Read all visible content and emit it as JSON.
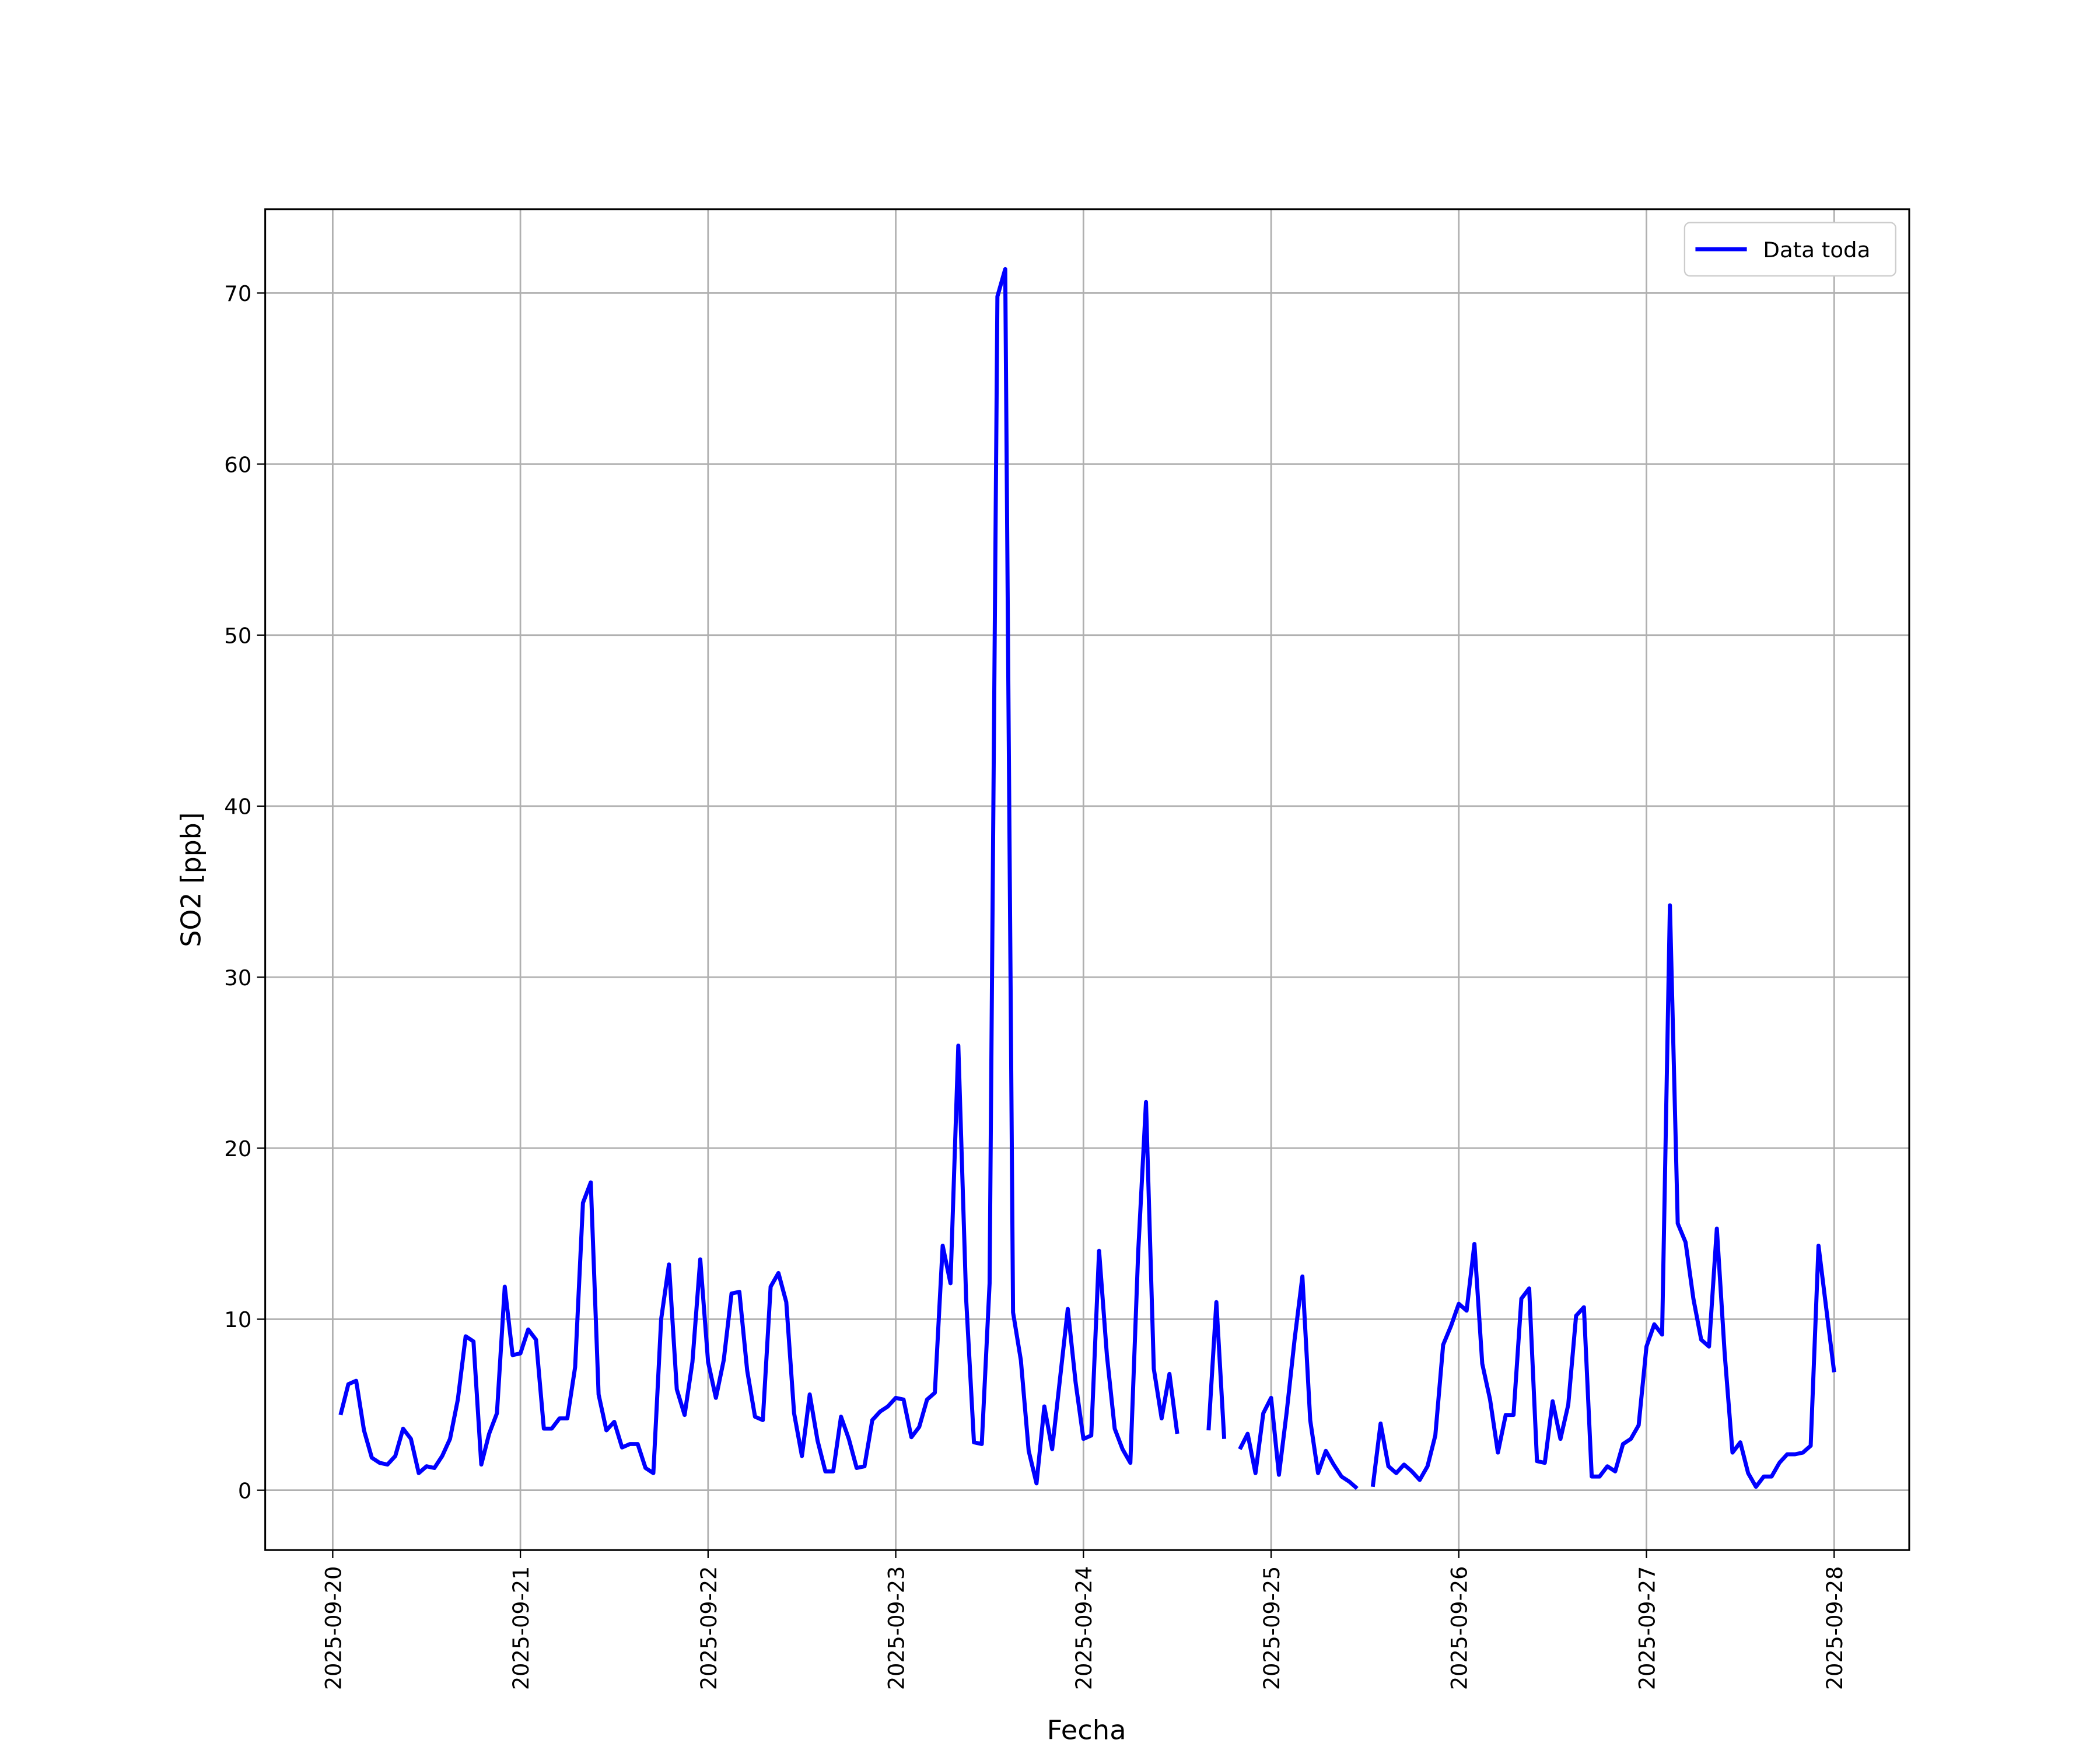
{
  "chart_data": {
    "type": "line",
    "xlabel": "Fecha",
    "ylabel": "SO2 [ppb]",
    "x": [
      "2025-09-20 01:00",
      "2025-09-20 02:00",
      "2025-09-20 03:00",
      "2025-09-20 04:00",
      "2025-09-20 05:00",
      "2025-09-20 06:00",
      "2025-09-20 07:00",
      "2025-09-20 08:00",
      "2025-09-20 09:00",
      "2025-09-20 10:00",
      "2025-09-20 11:00",
      "2025-09-20 12:00",
      "2025-09-20 13:00",
      "2025-09-20 14:00",
      "2025-09-20 15:00",
      "2025-09-20 16:00",
      "2025-09-20 17:00",
      "2025-09-20 18:00",
      "2025-09-20 19:00",
      "2025-09-20 20:00",
      "2025-09-20 21:00",
      "2025-09-20 22:00",
      "2025-09-20 23:00",
      "2025-09-21 00:00",
      "2025-09-21 01:00",
      "2025-09-21 02:00",
      "2025-09-21 03:00",
      "2025-09-21 04:00",
      "2025-09-21 05:00",
      "2025-09-21 06:00",
      "2025-09-21 07:00",
      "2025-09-21 08:00",
      "2025-09-21 09:00",
      "2025-09-21 10:00",
      "2025-09-21 11:00",
      "2025-09-21 12:00",
      "2025-09-21 13:00",
      "2025-09-21 14:00",
      "2025-09-21 15:00",
      "2025-09-21 16:00",
      "2025-09-21 17:00",
      "2025-09-21 18:00",
      "2025-09-21 19:00",
      "2025-09-21 20:00",
      "2025-09-21 21:00",
      "2025-09-21 22:00",
      "2025-09-21 23:00",
      "2025-09-22 00:00",
      "2025-09-22 01:00",
      "2025-09-22 02:00",
      "2025-09-22 03:00",
      "2025-09-22 04:00",
      "2025-09-22 05:00",
      "2025-09-22 06:00",
      "2025-09-22 07:00",
      "2025-09-22 08:00",
      "2025-09-22 09:00",
      "2025-09-22 10:00",
      "2025-09-22 11:00",
      "2025-09-22 12:00",
      "2025-09-22 13:00",
      "2025-09-22 14:00",
      "2025-09-22 15:00",
      "2025-09-22 16:00",
      "2025-09-22 17:00",
      "2025-09-22 18:00",
      "2025-09-22 19:00",
      "2025-09-22 20:00",
      "2025-09-22 21:00",
      "2025-09-22 22:00",
      "2025-09-22 23:00",
      "2025-09-23 00:00",
      "2025-09-23 01:00",
      "2025-09-23 02:00",
      "2025-09-23 03:00",
      "2025-09-23 04:00",
      "2025-09-23 05:00",
      "2025-09-23 06:00",
      "2025-09-23 07:00",
      "2025-09-23 08:00",
      "2025-09-23 09:00",
      "2025-09-23 10:00",
      "2025-09-23 11:00",
      "2025-09-23 12:00",
      "2025-09-23 13:00",
      "2025-09-23 14:00",
      "2025-09-23 15:00",
      "2025-09-23 16:00",
      "2025-09-23 17:00",
      "2025-09-23 18:00",
      "2025-09-23 19:00",
      "2025-09-23 20:00",
      "2025-09-23 21:00",
      "2025-09-23 22:00",
      "2025-09-23 23:00",
      "2025-09-24 00:00",
      "2025-09-24 01:00",
      "2025-09-24 02:00",
      "2025-09-24 03:00",
      "2025-09-24 04:00",
      "2025-09-24 05:00",
      "2025-09-24 06:00",
      "2025-09-24 07:00",
      "2025-09-24 08:00",
      "2025-09-24 09:00",
      "2025-09-24 10:00",
      "2025-09-24 11:00",
      "2025-09-24 12:00",
      "2025-09-24 13:00",
      "2025-09-24 14:00",
      "2025-09-24 15:00",
      "2025-09-24 16:00",
      "2025-09-24 17:00",
      "2025-09-24 18:00",
      "2025-09-24 19:00",
      "2025-09-24 20:00",
      "2025-09-24 21:00",
      "2025-09-24 22:00",
      "2025-09-24 23:00",
      "2025-09-25 00:00",
      "2025-09-25 01:00",
      "2025-09-25 02:00",
      "2025-09-25 03:00",
      "2025-09-25 04:00",
      "2025-09-25 05:00",
      "2025-09-25 06:00",
      "2025-09-25 07:00",
      "2025-09-25 08:00",
      "2025-09-25 09:00",
      "2025-09-25 10:00",
      "2025-09-25 11:00",
      "2025-09-25 12:00",
      "2025-09-25 13:00",
      "2025-09-25 14:00",
      "2025-09-25 15:00",
      "2025-09-25 16:00",
      "2025-09-25 17:00",
      "2025-09-25 18:00",
      "2025-09-25 19:00",
      "2025-09-25 20:00",
      "2025-09-25 21:00",
      "2025-09-25 22:00",
      "2025-09-25 23:00",
      "2025-09-26 00:00",
      "2025-09-26 01:00",
      "2025-09-26 02:00",
      "2025-09-26 03:00",
      "2025-09-26 04:00",
      "2025-09-26 05:00",
      "2025-09-26 06:00",
      "2025-09-26 07:00",
      "2025-09-26 08:00",
      "2025-09-26 09:00",
      "2025-09-26 10:00",
      "2025-09-26 11:00",
      "2025-09-26 12:00",
      "2025-09-26 13:00",
      "2025-09-26 14:00",
      "2025-09-26 15:00",
      "2025-09-26 16:00",
      "2025-09-26 17:00",
      "2025-09-26 18:00",
      "2025-09-26 19:00",
      "2025-09-26 20:00",
      "2025-09-26 21:00",
      "2025-09-26 22:00",
      "2025-09-26 23:00",
      "2025-09-27 00:00",
      "2025-09-27 01:00",
      "2025-09-27 02:00",
      "2025-09-27 03:00",
      "2025-09-27 04:00",
      "2025-09-27 05:00",
      "2025-09-27 06:00",
      "2025-09-27 07:00",
      "2025-09-27 08:00",
      "2025-09-27 09:00",
      "2025-09-27 10:00",
      "2025-09-27 11:00",
      "2025-09-27 12:00",
      "2025-09-27 13:00",
      "2025-09-27 14:00",
      "2025-09-27 15:00",
      "2025-09-27 16:00",
      "2025-09-27 17:00",
      "2025-09-27 18:00",
      "2025-09-27 19:00",
      "2025-09-27 20:00",
      "2025-09-27 21:00",
      "2025-09-27 22:00",
      "2025-09-27 23:00",
      "2025-09-28 00:00"
    ],
    "series": [
      {
        "name": "Data toda",
        "color": "#0000ff",
        "values": [
          4.4,
          6.2,
          6.4,
          3.5,
          1.9,
          1.6,
          1.5,
          2.0,
          3.6,
          3.0,
          1.0,
          1.4,
          1.3,
          2.0,
          3.0,
          5.3,
          9.0,
          8.7,
          1.5,
          3.3,
          4.5,
          11.9,
          7.9,
          8.0,
          9.4,
          8.8,
          3.6,
          3.6,
          4.2,
          4.2,
          7.2,
          16.8,
          18.0,
          5.6,
          3.5,
          4.0,
          2.5,
          2.7,
          2.7,
          1.3,
          1.0,
          10.0,
          13.2,
          5.9,
          4.4,
          7.5,
          13.5,
          7.5,
          5.4,
          7.6,
          11.5,
          11.6,
          7.0,
          4.3,
          4.1,
          11.9,
          12.7,
          11.0,
          4.5,
          2.0,
          5.6,
          2.9,
          1.1,
          1.1,
          4.3,
          3.0,
          1.3,
          1.4,
          4.1,
          4.6,
          4.9,
          5.4,
          5.3,
          3.1,
          3.7,
          5.3,
          5.7,
          14.3,
          12.1,
          26.0,
          11.2,
          2.8,
          2.7,
          12.1,
          69.8,
          71.4,
          10.4,
          7.6,
          2.3,
          0.4,
          4.9,
          2.4,
          6.5,
          10.6,
          6.3,
          3.0,
          3.2,
          14.0,
          7.9,
          3.6,
          2.4,
          1.6,
          13.9,
          22.7,
          7.1,
          4.2,
          6.8,
          3.3,
          null,
          null,
          null,
          3.5,
          11.0,
          3.0,
          null,
          2.4,
          3.3,
          1.0,
          4.5,
          5.4,
          0.9,
          4.6,
          8.8,
          12.5,
          4.1,
          1.0,
          2.3,
          1.5,
          0.8,
          0.5,
          0.1,
          null,
          0.2,
          3.9,
          1.4,
          1.0,
          1.5,
          1.1,
          0.6,
          1.4,
          3.2,
          8.5,
          9.6,
          10.9,
          10.5,
          14.4,
          7.4,
          5.3,
          2.2,
          4.4,
          4.4,
          11.2,
          11.8,
          1.7,
          1.6,
          5.2,
          3.0,
          5.0,
          10.2,
          10.7,
          0.8,
          0.8,
          1.4,
          1.1,
          2.7,
          3.0,
          3.8,
          8.4,
          9.7,
          9.1,
          34.2,
          15.6,
          14.5,
          11.2,
          8.8,
          8.4,
          15.3,
          8.0,
          2.2,
          2.8,
          1.0,
          0.2,
          0.8,
          0.8,
          1.6,
          2.1,
          2.1,
          2.2,
          2.6,
          14.3,
          10.6,
          6.9
        ]
      }
    ],
    "xlim": [
      "2025-09-19 15:22",
      "2025-09-28 09:36"
    ],
    "xticks": [
      "2025-09-20",
      "2025-09-21",
      "2025-09-22",
      "2025-09-23",
      "2025-09-24",
      "2025-09-25",
      "2025-09-26",
      "2025-09-27",
      "2025-09-28"
    ],
    "ylim": [
      -3.5,
      74.9
    ],
    "yticks": [
      0,
      10,
      20,
      30,
      40,
      50,
      60,
      70
    ],
    "grid": true,
    "legend": "upper right"
  }
}
